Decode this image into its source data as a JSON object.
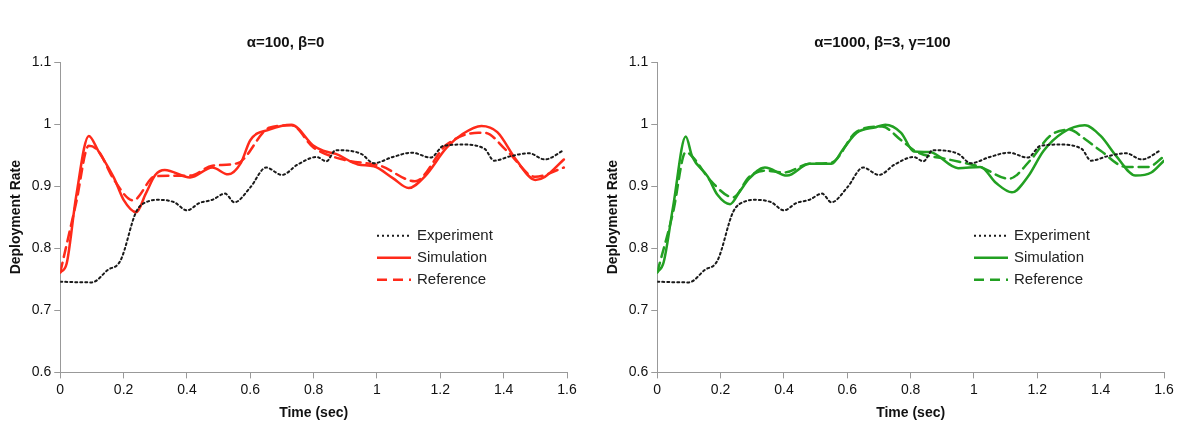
{
  "chart_data": [
    {
      "type": "line",
      "title": "α=100, β=0",
      "xlabel": "Time (sec)",
      "ylabel": "Deployment Rate",
      "xlim": [
        0,
        1.6
      ],
      "xticks": [
        0,
        0.2,
        0.4,
        0.6,
        0.8,
        1,
        1.2,
        1.4,
        1.6
      ],
      "ylim": [
        0.6,
        1.1
      ],
      "yticks": [
        0.6,
        0.7,
        0.8,
        0.9,
        1,
        1.1
      ],
      "grid": false,
      "legend": "right",
      "marker": "none",
      "series": [
        {
          "name": "Experiment",
          "color": "#1a1a1a",
          "line_style": "dotted",
          "x": [
            0,
            0.1,
            0.15,
            0.19,
            0.24,
            0.28,
            0.31,
            0.36,
            0.4,
            0.44,
            0.48,
            0.52,
            0.55,
            0.6,
            0.65,
            0.7,
            0.75,
            0.81,
            0.84,
            0.87,
            0.95,
            0.99,
            1.05,
            1.11,
            1.17,
            1.21,
            1.27,
            1.34,
            1.37,
            1.42,
            1.48,
            1.53,
            1.59
          ],
          "values": [
            0.746,
            0.745,
            0.765,
            0.78,
            0.859,
            0.876,
            0.878,
            0.874,
            0.861,
            0.873,
            0.878,
            0.888,
            0.874,
            0.898,
            0.93,
            0.918,
            0.935,
            0.947,
            0.94,
            0.958,
            0.952,
            0.937,
            0.947,
            0.954,
            0.946,
            0.965,
            0.967,
            0.96,
            0.941,
            0.948,
            0.953,
            0.943,
            0.958
          ]
        },
        {
          "name": "Simulation",
          "color": "#ff2a1a",
          "line_style": "solid",
          "x": [
            0,
            0.02,
            0.05,
            0.09,
            0.12,
            0.17,
            0.2,
            0.24,
            0.27,
            0.3,
            0.33,
            0.41,
            0.48,
            0.53,
            0.57,
            0.6,
            0.66,
            0.73,
            0.8,
            0.83,
            0.87,
            0.94,
            0.99,
            1.05,
            1.1,
            1.15,
            1.22,
            1.27,
            1.33,
            1.38,
            1.44,
            1.5,
            1.53,
            1.59
          ],
          "values": [
            0.761,
            0.775,
            0.883,
            0.981,
            0.957,
            0.913,
            0.878,
            0.858,
            0.888,
            0.918,
            0.926,
            0.914,
            0.93,
            0.919,
            0.937,
            0.974,
            0.991,
            0.999,
            0.965,
            0.957,
            0.952,
            0.935,
            0.932,
            0.913,
            0.897,
            0.915,
            0.962,
            0.984,
            0.997,
            0.987,
            0.942,
            0.91,
            0.915,
            0.943
          ]
        },
        {
          "name": "Reference",
          "color": "#ff2a1a",
          "line_style": "dashed",
          "x": [
            0,
            0.05,
            0.09,
            0.12,
            0.17,
            0.23,
            0.3,
            0.41,
            0.48,
            0.56,
            0.66,
            0.73,
            0.8,
            0.9,
            1.01,
            1.12,
            1.22,
            1.32,
            1.34,
            1.41,
            1.5,
            1.59
          ],
          "values": [
            0.761,
            0.873,
            0.965,
            0.957,
            0.91,
            0.877,
            0.916,
            0.917,
            0.933,
            0.937,
            0.994,
            0.998,
            0.962,
            0.942,
            0.933,
            0.908,
            0.967,
            0.986,
            0.986,
            0.957,
            0.915,
            0.93
          ]
        }
      ]
    },
    {
      "type": "line",
      "title": "α=1000, β=3, γ=100",
      "xlabel": "Time (sec)",
      "ylabel": "Deployment Rate",
      "xlim": [
        0,
        1.6
      ],
      "xticks": [
        0,
        0.2,
        0.4,
        0.6,
        0.8,
        1,
        1.2,
        1.4,
        1.6
      ],
      "ylim": [
        0.6,
        1.1
      ],
      "yticks": [
        0.6,
        0.7,
        0.8,
        0.9,
        1,
        1.1
      ],
      "grid": false,
      "legend": "right",
      "marker": "none",
      "series": [
        {
          "name": "Experiment",
          "color": "#1a1a1a",
          "line_style": "dotted",
          "x": [
            0,
            0.1,
            0.15,
            0.19,
            0.24,
            0.28,
            0.31,
            0.36,
            0.4,
            0.44,
            0.48,
            0.52,
            0.55,
            0.6,
            0.65,
            0.7,
            0.75,
            0.81,
            0.84,
            0.87,
            0.95,
            0.99,
            1.05,
            1.11,
            1.17,
            1.21,
            1.27,
            1.34,
            1.37,
            1.42,
            1.48,
            1.53,
            1.59
          ],
          "values": [
            0.746,
            0.745,
            0.765,
            0.78,
            0.859,
            0.876,
            0.878,
            0.874,
            0.861,
            0.873,
            0.878,
            0.888,
            0.874,
            0.898,
            0.93,
            0.918,
            0.935,
            0.947,
            0.94,
            0.958,
            0.952,
            0.937,
            0.947,
            0.954,
            0.946,
            0.965,
            0.967,
            0.96,
            0.941,
            0.948,
            0.953,
            0.943,
            0.958
          ]
        },
        {
          "name": "Simulation",
          "color": "#22a022",
          "line_style": "solid",
          "x": [
            0,
            0.02,
            0.05,
            0.09,
            0.11,
            0.16,
            0.19,
            0.23,
            0.26,
            0.29,
            0.34,
            0.41,
            0.48,
            0.55,
            0.59,
            0.63,
            0.69,
            0.72,
            0.77,
            0.81,
            0.86,
            0.95,
            1.02,
            1.07,
            1.12,
            1.17,
            1.22,
            1.28,
            1.35,
            1.4,
            1.45,
            1.51,
            1.56,
            1.6
          ],
          "values": [
            0.761,
            0.777,
            0.867,
            0.98,
            0.948,
            0.915,
            0.886,
            0.871,
            0.891,
            0.912,
            0.93,
            0.917,
            0.936,
            0.936,
            0.962,
            0.986,
            0.995,
            0.999,
            0.986,
            0.956,
            0.955,
            0.929,
            0.931,
            0.905,
            0.89,
            0.915,
            0.957,
            0.986,
            0.998,
            0.981,
            0.948,
            0.917,
            0.922,
            0.941
          ]
        },
        {
          "name": "Reference",
          "color": "#22a022",
          "line_style": "dashed",
          "x": [
            0,
            0.05,
            0.09,
            0.11,
            0.17,
            0.24,
            0.29,
            0.34,
            0.4,
            0.48,
            0.55,
            0.63,
            0.71,
            0.77,
            0.82,
            0.92,
            1.02,
            1.11,
            1.18,
            1.24,
            1.3,
            1.35,
            1.4,
            1.48,
            1.55,
            1.6
          ],
          "values": [
            0.761,
            0.858,
            0.955,
            0.948,
            0.908,
            0.882,
            0.915,
            0.925,
            0.922,
            0.936,
            0.938,
            0.988,
            0.996,
            0.974,
            0.955,
            0.943,
            0.931,
            0.912,
            0.943,
            0.981,
            0.991,
            0.976,
            0.957,
            0.931,
            0.931,
            0.948
          ]
        }
      ]
    }
  ]
}
